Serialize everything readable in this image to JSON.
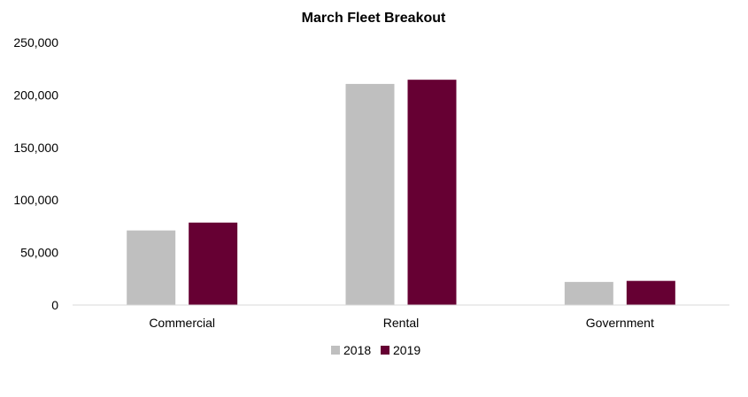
{
  "chart_data": {
    "type": "bar",
    "title": "March Fleet Breakout",
    "categories": [
      "Commercial",
      "Rental",
      "Government"
    ],
    "series": [
      {
        "name": "2018",
        "values": [
          71000,
          210500,
          22000
        ],
        "color": "#bfbfbf"
      },
      {
        "name": "2019",
        "values": [
          78500,
          214500,
          23000
        ],
        "color": "#660033"
      }
    ],
    "ylim": [
      0,
      250000
    ],
    "yticks": [
      "0",
      "50,000",
      "100,000",
      "150,000",
      "200,000",
      "250,000"
    ],
    "ytick_values": [
      0,
      50000,
      100000,
      150000,
      200000,
      250000
    ],
    "grid": false,
    "legend_position": "bottom"
  }
}
